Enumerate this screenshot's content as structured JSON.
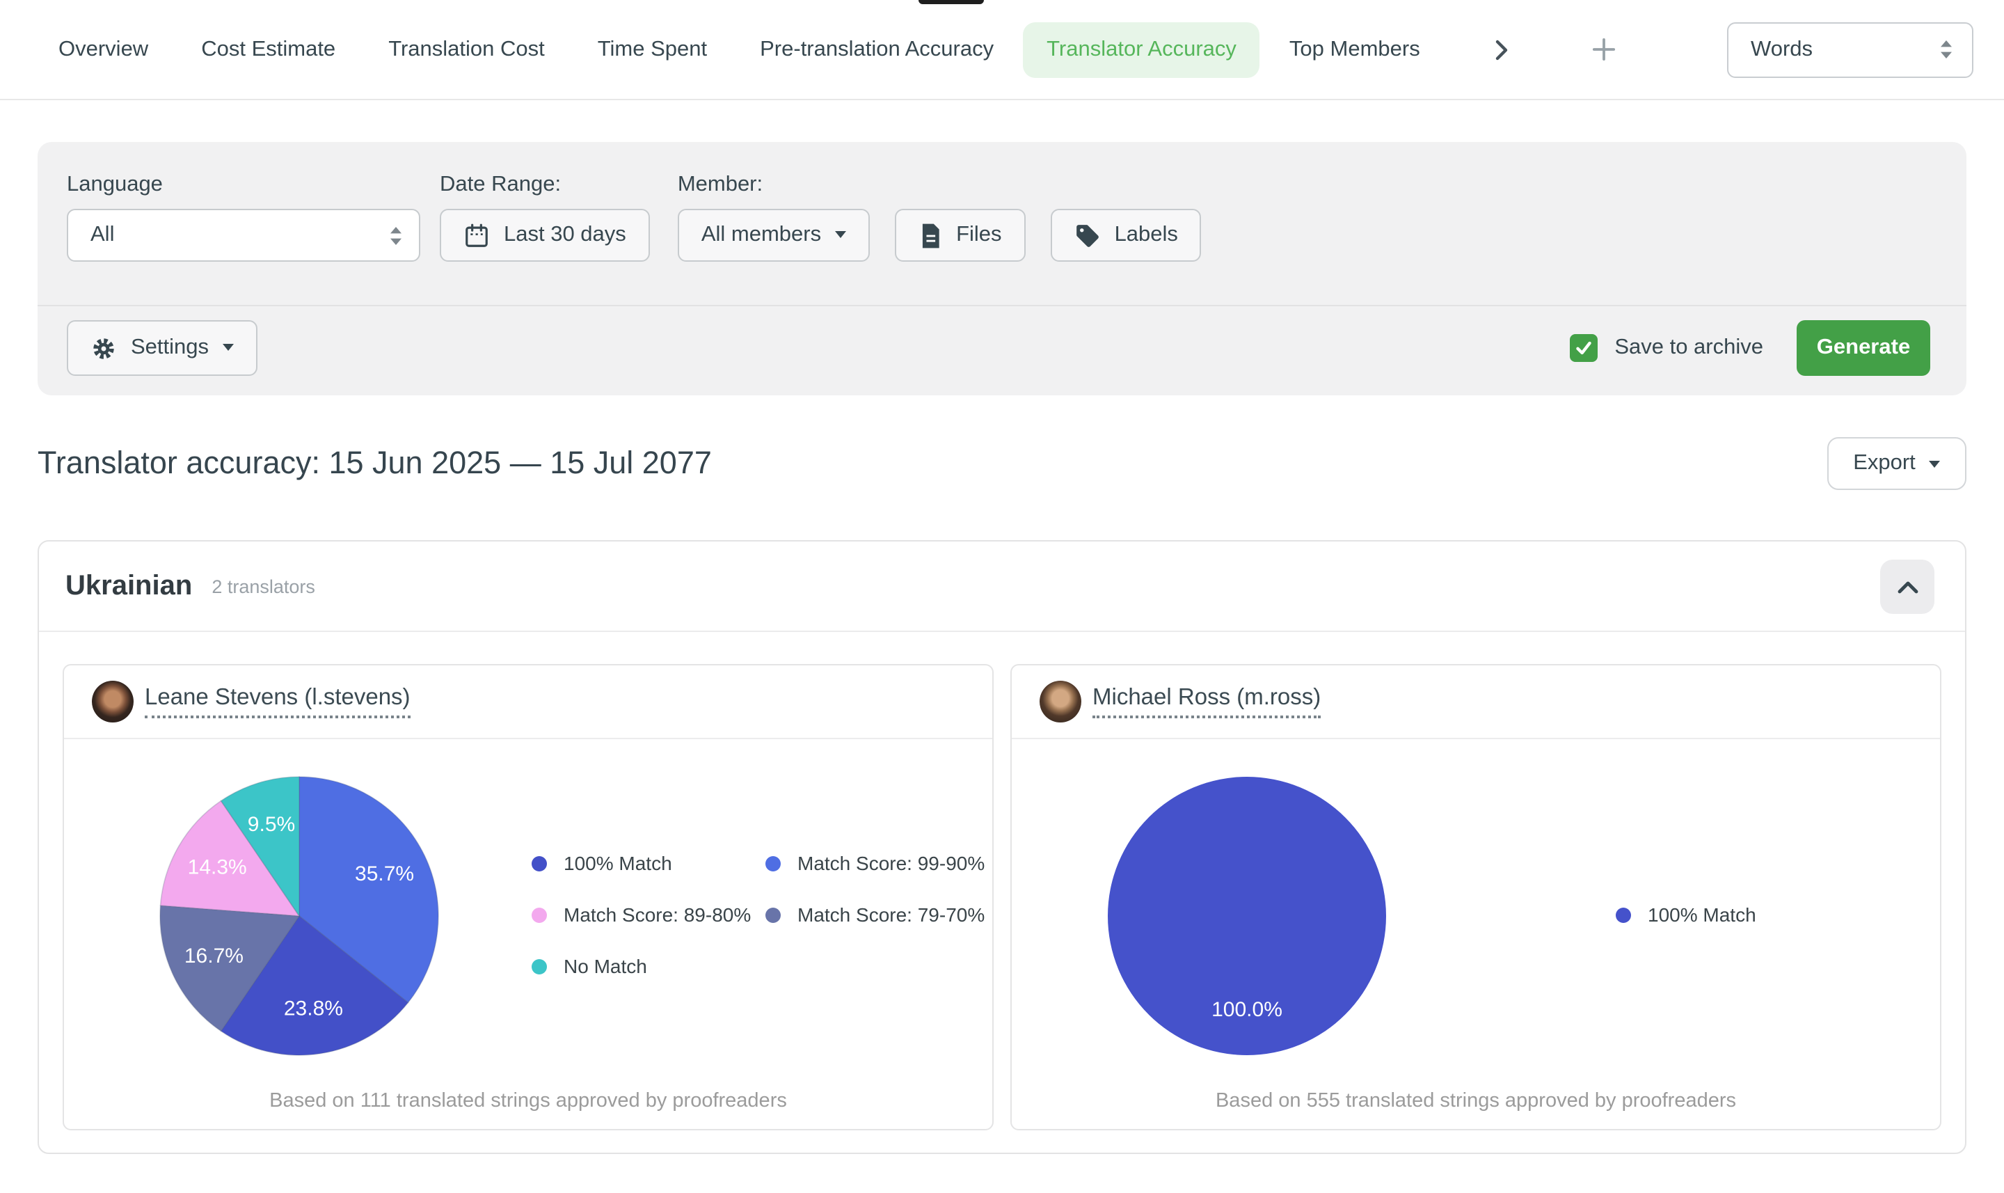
{
  "tabs": {
    "items": [
      {
        "label": "Overview"
      },
      {
        "label": "Cost Estimate"
      },
      {
        "label": "Translation Cost"
      },
      {
        "label": "Time Spent"
      },
      {
        "label": "Pre-translation Accuracy"
      },
      {
        "label": "Translator Accuracy"
      },
      {
        "label": "Top Members"
      }
    ],
    "active": "Translator Accuracy",
    "unit_select_value": "Words"
  },
  "filters": {
    "language_label": "Language",
    "language_value": "All",
    "date_range_label": "Date Range:",
    "date_range_value": "Last 30 days",
    "member_label": "Member:",
    "member_value": "All members",
    "files_button": "Files",
    "labels_button": "Labels"
  },
  "actions": {
    "settings_label": "Settings",
    "save_to_archive_label": "Save to archive",
    "save_to_archive_checked": true,
    "generate_label": "Generate"
  },
  "report": {
    "title": "Translator accuracy: 15 Jun 2025 — 15 Jul 2077",
    "export_label": "Export"
  },
  "section": {
    "language": "Ukrainian",
    "translators_count_label": "2 translators"
  },
  "translators": [
    {
      "name": "Leane Stevens (l.stevens)"
    },
    {
      "name": "Michael Ross (m.ross)"
    }
  ],
  "chart_data": [
    {
      "type": "pie",
      "owner": "Leane Stevens (l.stevens)",
      "slices": [
        {
          "label": "Match Score: 99-90%",
          "value": 35.7,
          "display": "35.7%",
          "color": "#4f6ee3"
        },
        {
          "label": "100% Match",
          "value": 23.8,
          "display": "23.8%",
          "color": "#4350c8"
        },
        {
          "label": "Match Score: 79-70%",
          "value": 16.7,
          "display": "16.7%",
          "color": "#6874a9"
        },
        {
          "label": "Match Score: 89-80%",
          "value": 14.3,
          "display": "14.3%",
          "color": "#f3a9ee"
        },
        {
          "label": "No Match",
          "value": 9.5,
          "display": "9.5%",
          "color": "#3cc5c8"
        }
      ],
      "legend": [
        {
          "label": "100% Match",
          "color": "#4350c8"
        },
        {
          "label": "Match Score: 99-90%",
          "color": "#4f6ee3"
        },
        {
          "label": "Match Score: 89-80%",
          "color": "#f3a9ee"
        },
        {
          "label": "Match Score: 79-70%",
          "color": "#6874a9"
        },
        {
          "label": "No Match",
          "color": "#3cc5c8"
        }
      ],
      "caption": "Based on 111 translated strings approved by proofreaders"
    },
    {
      "type": "pie",
      "owner": "Michael Ross (m.ross)",
      "slices": [
        {
          "label": "100% Match",
          "value": 100.0,
          "display": "100.0%",
          "color": "#4552cb"
        }
      ],
      "legend": [
        {
          "label": "100% Match",
          "color": "#4552cb"
        }
      ],
      "caption": "Based on 555 translated strings approved by proofreaders"
    }
  ]
}
